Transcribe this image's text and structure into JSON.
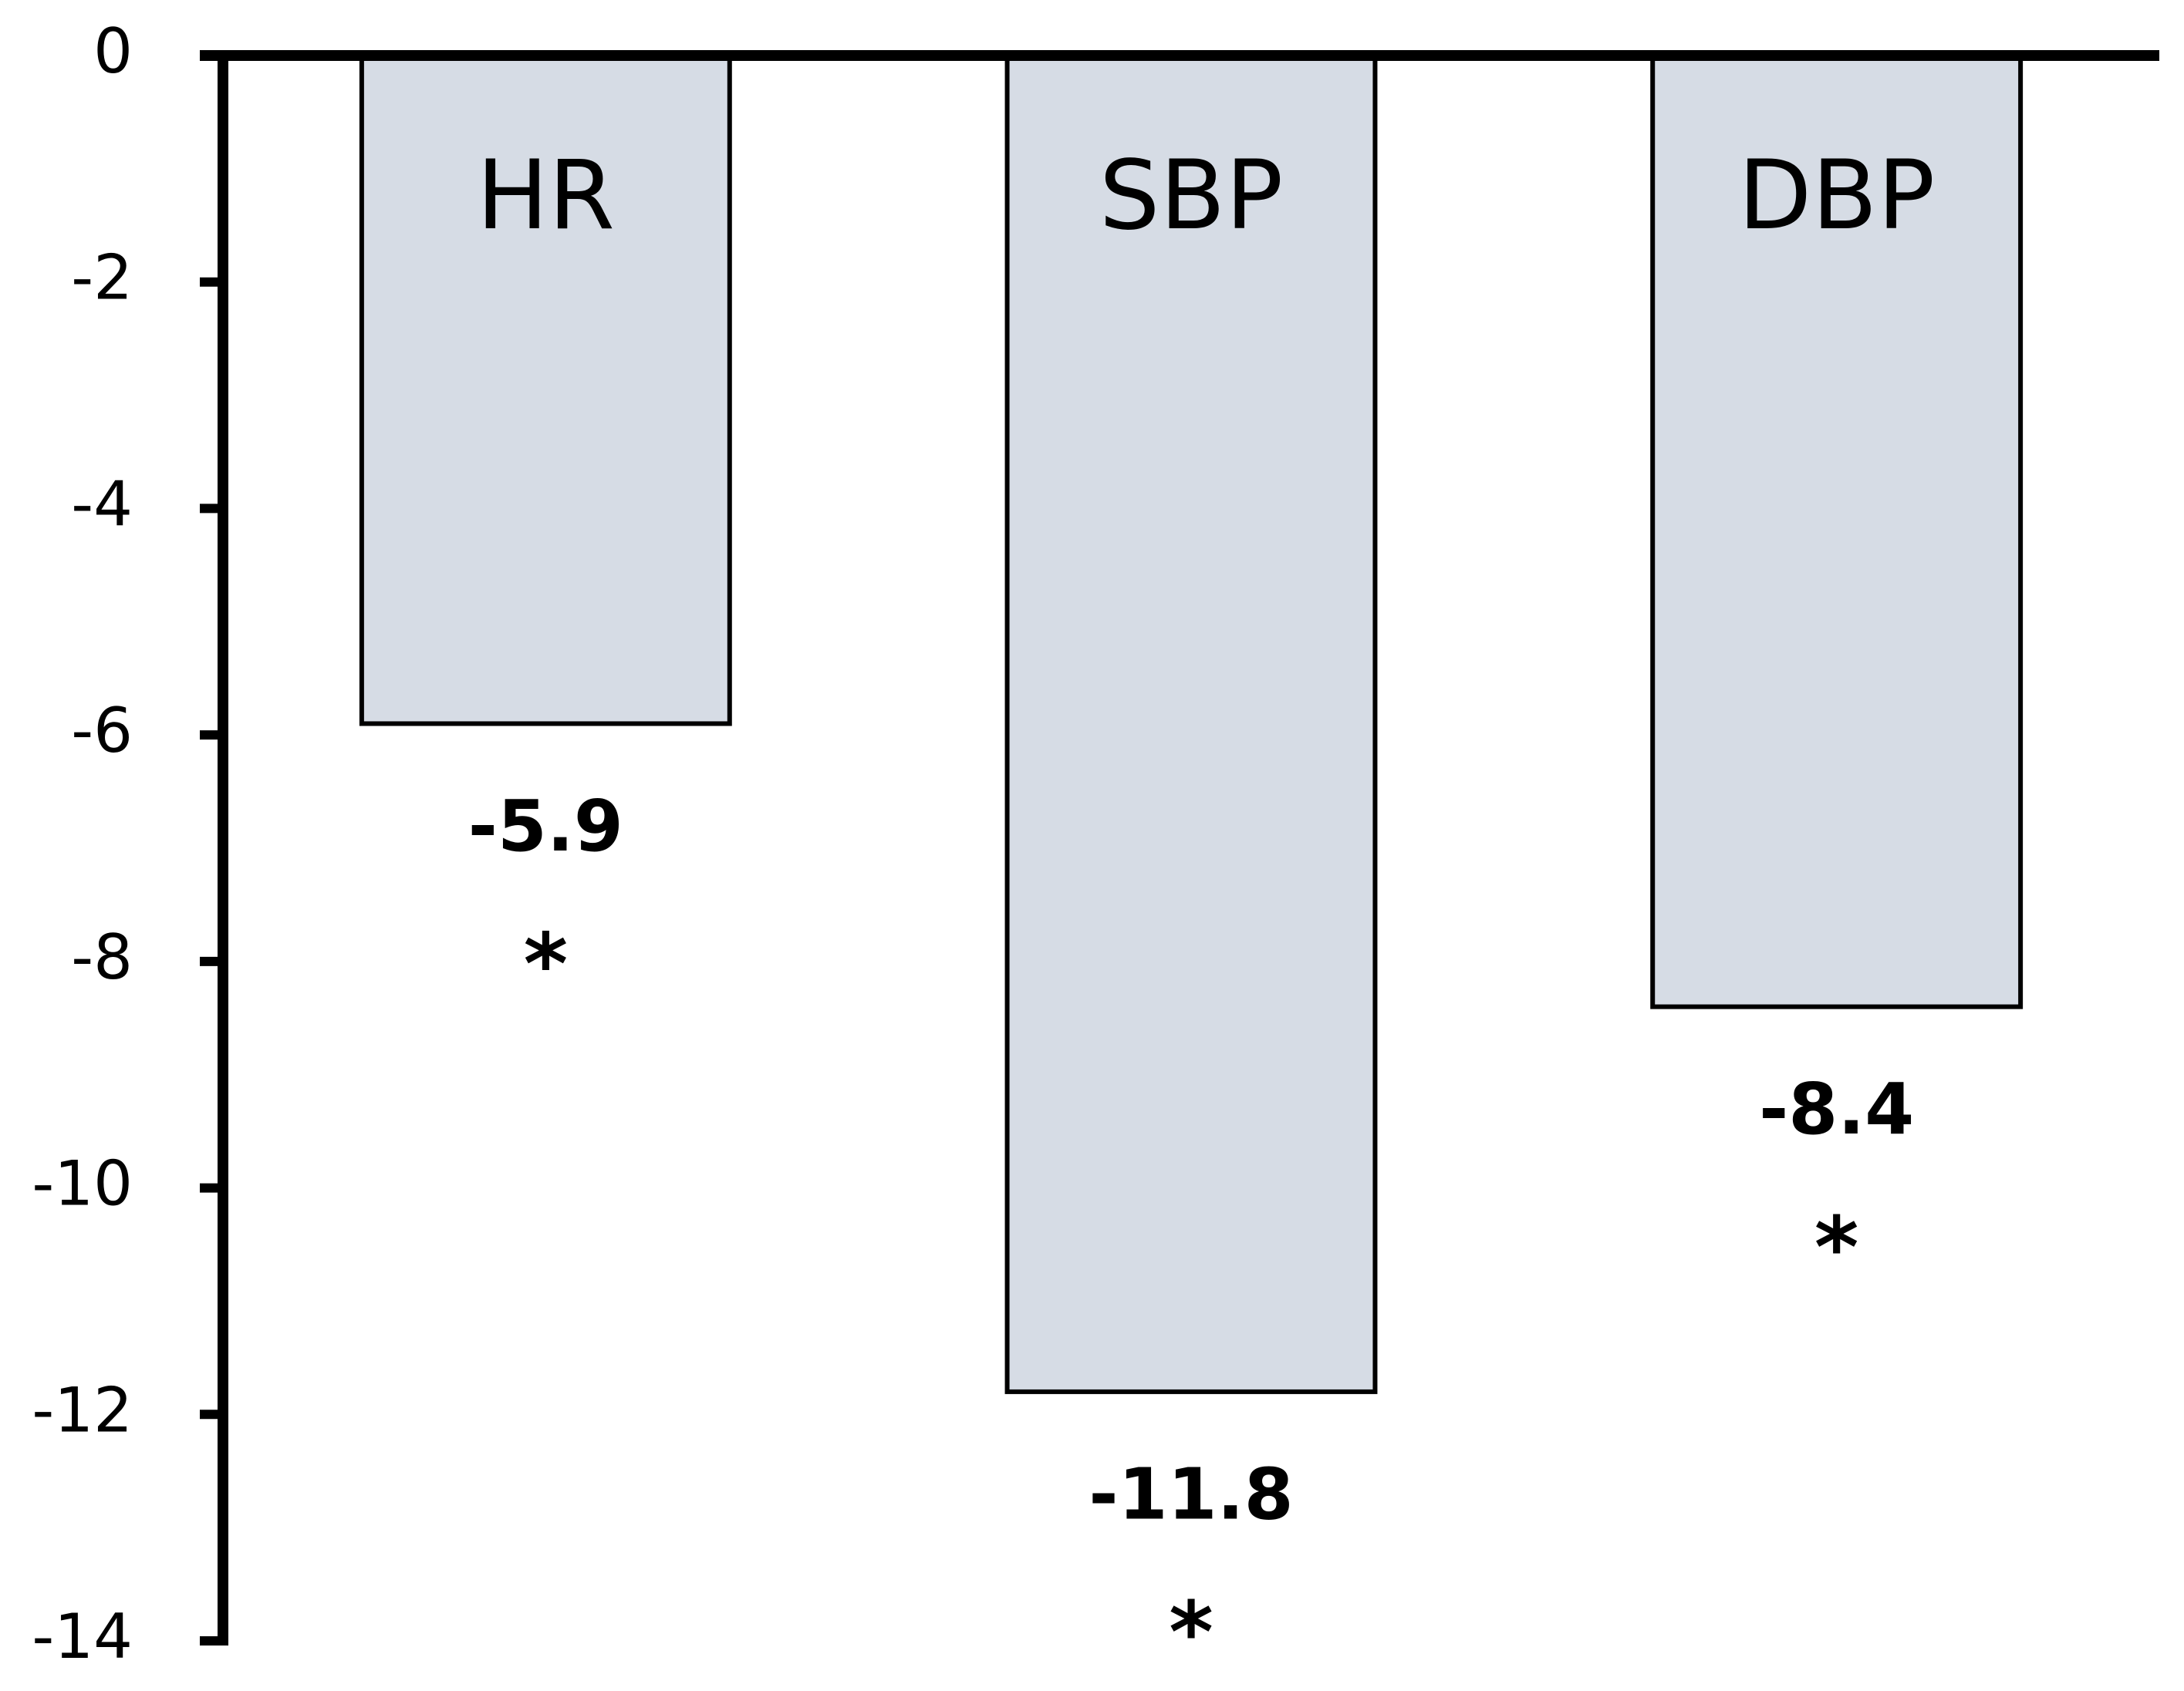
{
  "chart_data": {
    "type": "bar",
    "categories": [
      "HR",
      "SBP",
      "DBP"
    ],
    "values": [
      -5.9,
      -11.8,
      -8.4
    ],
    "annotations": [
      "*",
      "*",
      "*"
    ],
    "color": "#d6dce5",
    "ylim": [
      -14,
      0
    ],
    "yticks": [
      0,
      -2,
      -4,
      -6,
      -8,
      -10,
      -12,
      -14
    ],
    "grid": false
  }
}
